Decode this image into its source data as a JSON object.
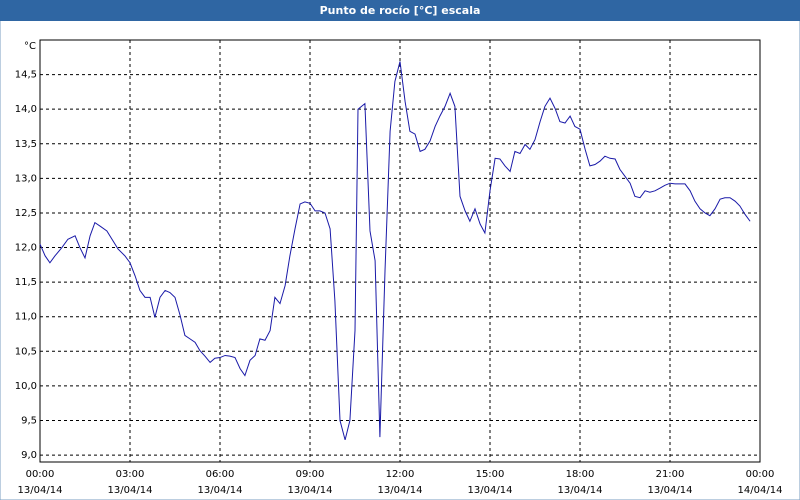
{
  "chart_data": {
    "type": "line",
    "title": "Punto de rocío [°C] escala",
    "y_label": "°C",
    "xlim": [
      0,
      24
    ],
    "ylim": [
      8.9,
      15.0
    ],
    "grid": true,
    "xticks": [
      {
        "value": 0,
        "label": "00:00",
        "date": "13/04/14"
      },
      {
        "value": 3,
        "label": "03:00",
        "date": "13/04/14"
      },
      {
        "value": 6,
        "label": "06:00",
        "date": "13/04/14"
      },
      {
        "value": 9,
        "label": "09:00",
        "date": "13/04/14"
      },
      {
        "value": 12,
        "label": "12:00",
        "date": "13/04/14"
      },
      {
        "value": 15,
        "label": "15:00",
        "date": "13/04/14"
      },
      {
        "value": 18,
        "label": "18:00",
        "date": "13/04/14"
      },
      {
        "value": 21,
        "label": "21:00",
        "date": "13/04/14"
      },
      {
        "value": 24,
        "label": "00:00",
        "date": "14/04/14"
      }
    ],
    "yticks": [
      {
        "value": 9.0,
        "label": "9,0"
      },
      {
        "value": 9.5,
        "label": "9,5"
      },
      {
        "value": 10.0,
        "label": "10,0"
      },
      {
        "value": 10.5,
        "label": "10,5"
      },
      {
        "value": 11.0,
        "label": "11,0"
      },
      {
        "value": 11.5,
        "label": "11,5"
      },
      {
        "value": 12.0,
        "label": "12,0"
      },
      {
        "value": 12.5,
        "label": "12,5"
      },
      {
        "value": 13.0,
        "label": "13,0"
      },
      {
        "value": 13.5,
        "label": "13,5"
      },
      {
        "value": 14.0,
        "label": "14,0"
      },
      {
        "value": 14.5,
        "label": "14,5"
      }
    ],
    "x": [
      0,
      0.17,
      0.33,
      0.5,
      0.73,
      0.93,
      1.17,
      1.33,
      1.5,
      1.67,
      1.83,
      2,
      2.23,
      2.4,
      2.6,
      2.83,
      3,
      3.17,
      3.33,
      3.5,
      3.67,
      3.83,
      4,
      4.17,
      4.33,
      4.5,
      4.67,
      4.83,
      5,
      5.17,
      5.33,
      5.5,
      5.67,
      5.83,
      6,
      6.17,
      6.33,
      6.5,
      6.67,
      6.83,
      7,
      7.17,
      7.33,
      7.5,
      7.67,
      7.83,
      8,
      8.17,
      8.33,
      8.5,
      8.67,
      8.83,
      9,
      9.17,
      9.33,
      9.5,
      9.67,
      9.83,
      10,
      10.17,
      10.33,
      10.5,
      10.6,
      10.83,
      11,
      11.17,
      11.33,
      11.5,
      11.67,
      11.83,
      12,
      12.17,
      12.33,
      12.5,
      12.67,
      12.83,
      13,
      13.17,
      13.33,
      13.5,
      13.67,
      13.83,
      14,
      14.17,
      14.33,
      14.5,
      14.67,
      14.83,
      15,
      15.17,
      15.33,
      15.5,
      15.67,
      15.83,
      16,
      16.17,
      16.33,
      16.5,
      16.67,
      16.83,
      17,
      17.17,
      17.33,
      17.5,
      17.67,
      17.83,
      18,
      18.17,
      18.33,
      18.5,
      18.67,
      18.83,
      19,
      19.17,
      19.33,
      19.5,
      19.67,
      19.83,
      20,
      20.17,
      20.33,
      20.5,
      20.67,
      20.83,
      21,
      21.17,
      21.33,
      21.5,
      21.67,
      21.83,
      22,
      22.17,
      22.33,
      22.5,
      22.67,
      22.83,
      23,
      23.17,
      23.33,
      23.5,
      23.67
    ],
    "series": [
      {
        "color": "#1a1aa8",
        "values": [
          12.05,
          11.88,
          11.78,
          11.88,
          12.0,
          12.12,
          12.17,
          12.0,
          11.85,
          12.17,
          12.36,
          12.31,
          12.24,
          12.12,
          11.98,
          11.88,
          11.78,
          11.59,
          11.38,
          11.28,
          11.28,
          10.99,
          11.28,
          11.38,
          11.35,
          11.28,
          11.02,
          10.73,
          10.68,
          10.63,
          10.51,
          10.43,
          10.34,
          10.4,
          10.41,
          10.44,
          10.43,
          10.41,
          10.25,
          10.15,
          10.37,
          10.44,
          10.68,
          10.66,
          10.8,
          11.28,
          11.19,
          11.45,
          11.88,
          12.27,
          12.63,
          12.66,
          12.64,
          12.53,
          12.53,
          12.5,
          12.27,
          11.23,
          9.5,
          9.22,
          9.5,
          10.8,
          14.0,
          14.08,
          12.24,
          11.81,
          9.26,
          11.66,
          13.68,
          14.4,
          14.69,
          14.11,
          13.68,
          13.64,
          13.39,
          13.42,
          13.54,
          13.75,
          13.9,
          14.04,
          14.23,
          14.04,
          12.74,
          12.53,
          12.38,
          12.56,
          12.34,
          12.21,
          12.82,
          13.29,
          13.28,
          13.18,
          13.1,
          13.39,
          13.36,
          13.49,
          13.42,
          13.56,
          13.82,
          14.04,
          14.16,
          14.01,
          13.82,
          13.8,
          13.9,
          13.75,
          13.71,
          13.42,
          13.18,
          13.2,
          13.25,
          13.32,
          13.29,
          13.28,
          13.13,
          13.03,
          12.93,
          12.74,
          12.72,
          12.82,
          12.8,
          12.82,
          12.86,
          12.9,
          12.93,
          12.92,
          12.92,
          12.92,
          12.82,
          12.67,
          12.56,
          12.5,
          12.46,
          12.56,
          12.7,
          12.72,
          12.72,
          12.67,
          12.6,
          12.48,
          12.38
        ]
      }
    ]
  }
}
